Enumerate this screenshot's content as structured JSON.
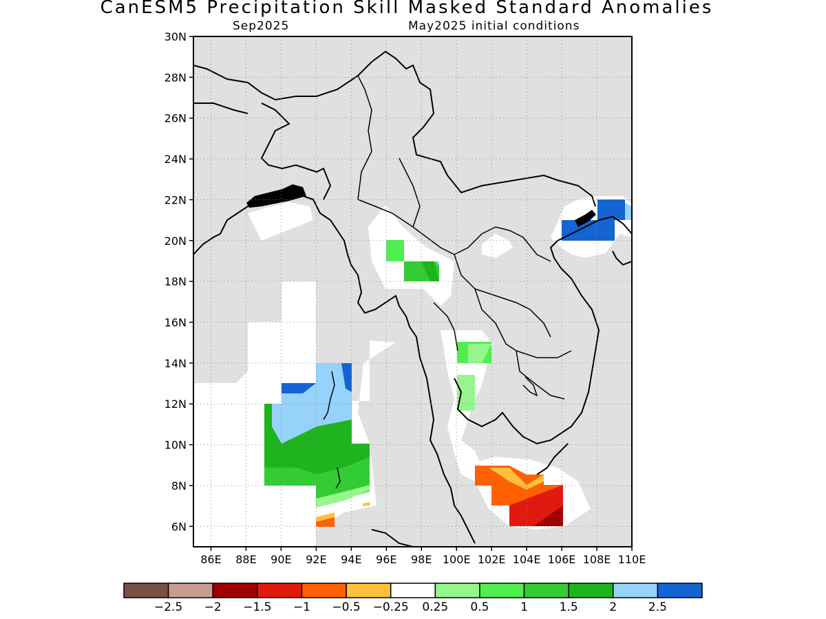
{
  "title": "CanESM5 Precipitation Skill Masked Standard Anomalies",
  "subtitle_left": "Sep2025",
  "subtitle_right": "May2025 initial conditions",
  "map": {
    "lon_range": [
      85,
      110
    ],
    "lat_range": [
      5,
      30
    ],
    "lat_ticks": [
      "30N",
      "28N",
      "26N",
      "24N",
      "22N",
      "20N",
      "18N",
      "16N",
      "14N",
      "12N",
      "10N",
      "8N",
      "6N"
    ],
    "lon_ticks": [
      "86E",
      "88E",
      "90E",
      "92E",
      "94E",
      "96E",
      "98E",
      "100E",
      "102E",
      "104E",
      "106E",
      "108E",
      "110E"
    ],
    "background_color": "#e0e0e0",
    "grid": "dotted"
  },
  "colorbar": {
    "colors": [
      "#7a5044",
      "#c89c90",
      "#a00000",
      "#e01a0e",
      "#ff6000",
      "#ffc03c",
      "#ffffff",
      "#96f58c",
      "#50ee50",
      "#32cd32",
      "#1eb41e",
      "#96d2fa",
      "#1464d2"
    ],
    "labels": [
      "−2.5",
      "−2",
      "−1.5",
      "−1",
      "−0.5",
      "−0.25",
      "0.25",
      "0.5",
      "1",
      "1.5",
      "2",
      "2.5"
    ]
  }
}
